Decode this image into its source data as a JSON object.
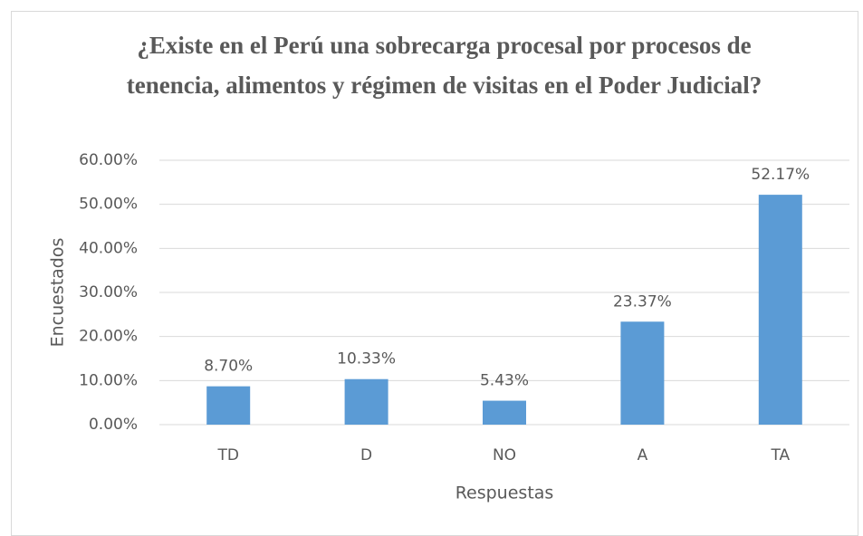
{
  "chart_data": {
    "type": "bar",
    "title": "¿Existe en el Perú una sobrecarga procesal por procesos de tenencia, alimentos y régimen de visitas en el Poder Judicial?",
    "x_label": "Respuestas",
    "y_label": "Encuestados",
    "categories": [
      "TD",
      "D",
      "NO",
      "A",
      "TA"
    ],
    "values": [
      8.7,
      10.33,
      5.43,
      23.37,
      52.17
    ],
    "value_labels": [
      "8.70%",
      "10.33%",
      "5.43%",
      "23.37%",
      "52.17%"
    ],
    "color": "#5b9bd5",
    "ylim": [
      0,
      60
    ],
    "yticks": [
      {
        "value": 0,
        "label": "0.00%"
      },
      {
        "value": 10,
        "label": "10.00%"
      },
      {
        "value": 20,
        "label": "20.00%"
      },
      {
        "value": 30,
        "label": "30.00%"
      },
      {
        "value": 40,
        "label": "40.00%"
      },
      {
        "value": 50,
        "label": "50.00%"
      },
      {
        "value": 60,
        "label": "60.00%"
      }
    ],
    "grid": true
  }
}
